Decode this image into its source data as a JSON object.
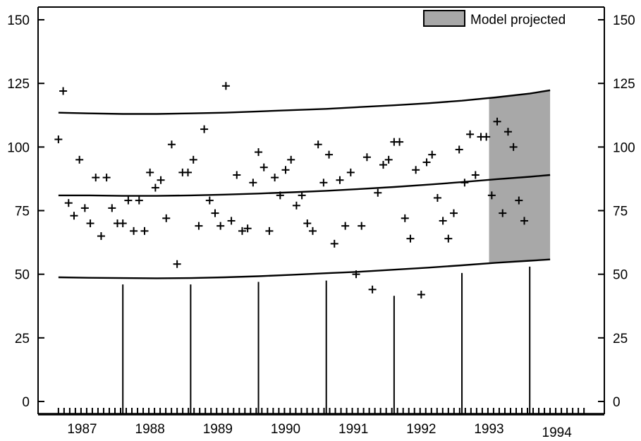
{
  "chart_data": {
    "type": "scatter",
    "title": "",
    "xlabel": "",
    "ylabel": "",
    "ylim": [
      -5,
      155
    ],
    "xlim": [
      1986.25,
      1994.6
    ],
    "grid": false,
    "y_ticks": [
      0,
      25,
      50,
      75,
      100,
      125,
      150
    ],
    "y_ticks_right": [
      0,
      25,
      50,
      75,
      100,
      125,
      150
    ],
    "x_tick_labels": [
      {
        "label": "1987",
        "x": 1986.9
      },
      {
        "label": "1988",
        "x": 1987.9
      },
      {
        "label": "1989",
        "x": 1988.9
      },
      {
        "label": "1990",
        "x": 1989.9
      },
      {
        "label": "1991",
        "x": 1990.9
      },
      {
        "label": "1992",
        "x": 1991.9
      },
      {
        "label": "1993",
        "x": 1992.9
      },
      {
        "label": "1994",
        "x": 1993.9
      }
    ],
    "legend": {
      "label": "Model projected",
      "position": "top-right",
      "color": "#a8a8a8"
    },
    "projection_range": [
      1992.9,
      1993.8
    ],
    "month_ticks_range": [
      1986.55,
      1994.35
    ],
    "year_markers": [
      {
        "x": 1987.5,
        "value": 46
      },
      {
        "x": 1988.5,
        "value": 46
      },
      {
        "x": 1989.5,
        "value": 47
      },
      {
        "x": 1990.5,
        "value": 47.5
      },
      {
        "x": 1991.5,
        "value": 41.5
      },
      {
        "x": 1992.5,
        "value": 50.5
      },
      {
        "x": 1993.5,
        "value": 53
      }
    ],
    "upper_band": [
      [
        1986.55,
        113.5
      ],
      [
        1987.0,
        113.2
      ],
      [
        1987.5,
        113.0
      ],
      [
        1988.0,
        113.0
      ],
      [
        1988.5,
        113.2
      ],
      [
        1989.0,
        113.5
      ],
      [
        1989.5,
        114.0
      ],
      [
        1990.0,
        114.5
      ],
      [
        1990.5,
        115.0
      ],
      [
        1991.0,
        115.7
      ],
      [
        1991.5,
        116.4
      ],
      [
        1992.0,
        117.2
      ],
      [
        1992.5,
        118.2
      ],
      [
        1993.0,
        119.5
      ],
      [
        1993.5,
        121.0
      ],
      [
        1993.8,
        122.3
      ]
    ],
    "middle_line": [
      [
        1986.55,
        81.0
      ],
      [
        1987.0,
        81.0
      ],
      [
        1987.5,
        80.8
      ],
      [
        1988.0,
        80.8
      ],
      [
        1988.5,
        81.0
      ],
      [
        1989.0,
        81.3
      ],
      [
        1989.5,
        81.7
      ],
      [
        1990.0,
        82.2
      ],
      [
        1990.5,
        82.8
      ],
      [
        1991.0,
        83.5
      ],
      [
        1991.5,
        84.3
      ],
      [
        1992.0,
        85.2
      ],
      [
        1992.5,
        86.2
      ],
      [
        1993.0,
        87.3
      ],
      [
        1993.5,
        88.3
      ],
      [
        1993.8,
        89.0
      ]
    ],
    "lower_band": [
      [
        1986.55,
        48.8
      ],
      [
        1987.0,
        48.6
      ],
      [
        1987.5,
        48.5
      ],
      [
        1988.0,
        48.4
      ],
      [
        1988.5,
        48.5
      ],
      [
        1989.0,
        48.8
      ],
      [
        1989.5,
        49.2
      ],
      [
        1990.0,
        49.8
      ],
      [
        1990.5,
        50.4
      ],
      [
        1991.0,
        51.0
      ],
      [
        1991.5,
        51.8
      ],
      [
        1992.0,
        52.6
      ],
      [
        1992.5,
        53.5
      ],
      [
        1993.0,
        54.5
      ],
      [
        1993.5,
        55.3
      ],
      [
        1993.8,
        55.8
      ]
    ],
    "series": [
      {
        "points": [
          [
            1986.55,
            103
          ],
          [
            1986.62,
            122
          ],
          [
            1986.7,
            78
          ],
          [
            1986.78,
            73
          ],
          [
            1986.86,
            95
          ],
          [
            1986.94,
            76
          ],
          [
            1987.02,
            70
          ],
          [
            1987.1,
            88
          ],
          [
            1987.18,
            65
          ],
          [
            1987.26,
            88
          ],
          [
            1987.34,
            76
          ],
          [
            1987.42,
            70
          ],
          [
            1987.5,
            70
          ],
          [
            1987.58,
            79
          ],
          [
            1987.66,
            67
          ],
          [
            1987.74,
            79
          ],
          [
            1987.82,
            67
          ],
          [
            1987.9,
            90
          ],
          [
            1987.98,
            84
          ],
          [
            1988.06,
            87
          ],
          [
            1988.14,
            72
          ],
          [
            1988.22,
            101
          ],
          [
            1988.3,
            54
          ],
          [
            1988.38,
            90
          ],
          [
            1988.46,
            90
          ],
          [
            1988.54,
            95
          ],
          [
            1988.62,
            69
          ],
          [
            1988.7,
            107
          ],
          [
            1988.78,
            79
          ],
          [
            1988.86,
            74
          ],
          [
            1988.94,
            69
          ],
          [
            1989.02,
            124
          ],
          [
            1989.1,
            71
          ],
          [
            1989.18,
            89
          ],
          [
            1989.26,
            67
          ],
          [
            1989.34,
            68
          ],
          [
            1989.42,
            86
          ],
          [
            1989.5,
            98
          ],
          [
            1989.58,
            92
          ],
          [
            1989.66,
            67
          ],
          [
            1989.74,
            88
          ],
          [
            1989.82,
            81
          ],
          [
            1989.9,
            91
          ],
          [
            1989.98,
            95
          ],
          [
            1990.06,
            77
          ],
          [
            1990.14,
            81
          ],
          [
            1990.22,
            70
          ],
          [
            1990.3,
            67
          ],
          [
            1990.38,
            101
          ],
          [
            1990.46,
            86
          ],
          [
            1990.54,
            97
          ],
          [
            1990.62,
            62
          ],
          [
            1990.7,
            87
          ],
          [
            1990.78,
            69
          ],
          [
            1990.86,
            90
          ],
          [
            1990.94,
            50
          ],
          [
            1991.02,
            69
          ],
          [
            1991.1,
            96
          ],
          [
            1991.18,
            44
          ],
          [
            1991.26,
            82
          ],
          [
            1991.34,
            93
          ],
          [
            1991.42,
            95
          ],
          [
            1991.5,
            102
          ],
          [
            1991.58,
            102
          ],
          [
            1991.66,
            72
          ],
          [
            1991.74,
            64
          ],
          [
            1991.82,
            91
          ],
          [
            1991.9,
            42
          ],
          [
            1991.98,
            94
          ],
          [
            1992.06,
            97
          ],
          [
            1992.14,
            80
          ],
          [
            1992.22,
            71
          ],
          [
            1992.3,
            64
          ],
          [
            1992.38,
            74
          ],
          [
            1992.46,
            99
          ],
          [
            1992.54,
            86
          ],
          [
            1992.62,
            105
          ],
          [
            1992.7,
            89
          ],
          [
            1992.78,
            104
          ],
          [
            1992.86,
            104
          ],
          [
            1992.94,
            81
          ],
          [
            1993.02,
            110
          ],
          [
            1993.1,
            74
          ],
          [
            1993.18,
            106
          ],
          [
            1993.26,
            100
          ],
          [
            1993.34,
            79
          ],
          [
            1993.42,
            71
          ]
        ]
      }
    ]
  }
}
